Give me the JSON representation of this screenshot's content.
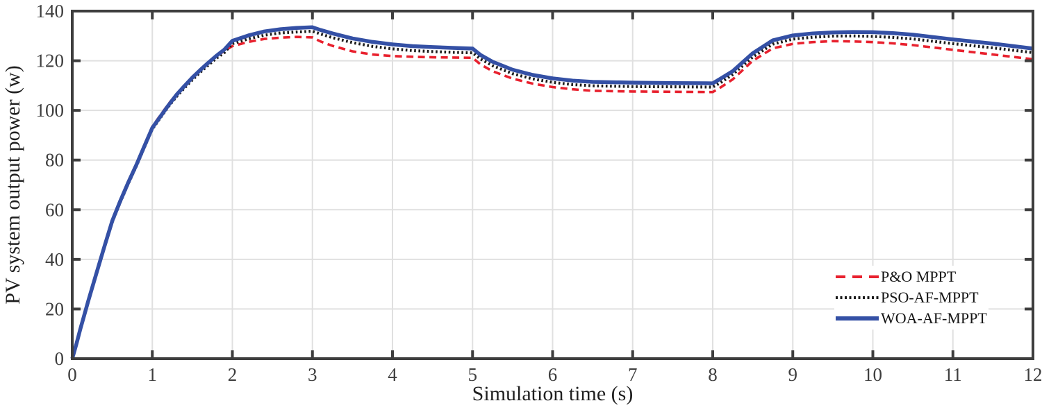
{
  "chart_data": {
    "type": "line",
    "title": "",
    "xlabel": "Simulation time (s)",
    "ylabel": "PV system output power (w)",
    "xlim": [
      0,
      12
    ],
    "ylim": [
      0,
      140
    ],
    "xticks": [
      0,
      1,
      2,
      3,
      4,
      5,
      6,
      7,
      8,
      9,
      10,
      11,
      12
    ],
    "yticks": [
      0,
      20,
      40,
      60,
      80,
      100,
      120,
      140
    ],
    "grid": true,
    "legend_position": "inside-lower-right",
    "x": [
      0,
      0.05,
      0.1,
      0.2,
      0.3,
      0.4,
      0.5,
      0.6,
      0.7,
      0.8,
      0.9,
      1,
      1.1,
      1.2,
      1.3,
      1.4,
      1.5,
      1.6,
      1.7,
      1.8,
      1.9,
      2,
      2.2,
      2.4,
      2.6,
      2.8,
      3,
      3.1,
      3.25,
      3.5,
      3.75,
      4,
      4.25,
      4.5,
      4.75,
      5,
      5.1,
      5.25,
      5.5,
      5.75,
      6,
      6.25,
      6.5,
      7,
      7.5,
      8,
      8.1,
      8.25,
      8.5,
      8.75,
      9,
      9.25,
      9.5,
      9.75,
      10,
      10.25,
      10.5,
      11,
      11.5,
      12
    ],
    "series": [
      {
        "name": "P&O MPPT",
        "color": "#e8212e",
        "line_style": "dashed",
        "values": [
          0,
          6,
          12,
          23.5,
          34.5,
          45.5,
          56,
          64,
          71.5,
          78.5,
          86,
          93.5,
          98,
          102.5,
          106.5,
          110,
          113.5,
          116.5,
          119.3,
          121.8,
          124,
          125.9,
          127.6,
          128.8,
          129.3,
          129.6,
          129.4,
          127.8,
          126,
          123.8,
          122.5,
          121.9,
          121.6,
          121.4,
          121.3,
          121.2,
          118.5,
          115.8,
          112.8,
          110.8,
          109.4,
          108.5,
          107.9,
          107.6,
          107.5,
          107.4,
          109.3,
          112.5,
          120,
          125,
          126.8,
          127.5,
          127.9,
          127.8,
          127.5,
          127,
          126.3,
          124.4,
          122.5,
          120.6
        ]
      },
      {
        "name": "PSO-AF-MPPT",
        "color": "#1b1b1b",
        "line_style": "dotted",
        "values": [
          0,
          5.5,
          11.5,
          23,
          34,
          44.8,
          55,
          63,
          70.5,
          77.5,
          85,
          92.5,
          97,
          101.5,
          105.5,
          109,
          112.3,
          115.4,
          118.3,
          121,
          123.3,
          126.9,
          128.8,
          130.3,
          131.2,
          131.6,
          131.9,
          130.8,
          129.3,
          127.3,
          125.8,
          124.8,
          124.1,
          123.7,
          123.4,
          123.2,
          120.7,
          118,
          114.8,
          112.7,
          111.3,
          110.4,
          109.9,
          109.6,
          109.5,
          109.4,
          111.2,
          114.5,
          121.5,
          126.7,
          128.7,
          129.5,
          129.9,
          130,
          129.8,
          129.4,
          128.8,
          126.9,
          125.2,
          123.3
        ]
      },
      {
        "name": "WOA-AF-MPPT",
        "color": "#3450a5",
        "line_style": "solid",
        "values": [
          0,
          5.7,
          11.8,
          23.2,
          34.2,
          45,
          55.5,
          63.5,
          71,
          78,
          85.5,
          93,
          97.5,
          102,
          106.2,
          109.8,
          113.2,
          116.3,
          119.2,
          122,
          124.5,
          128,
          130.2,
          131.8,
          132.7,
          133.2,
          133.5,
          132.4,
          131,
          129,
          127.6,
          126.6,
          125.9,
          125.5,
          125.2,
          124.9,
          122.3,
          119.6,
          116.4,
          114.3,
          112.9,
          112,
          111.5,
          111.2,
          111,
          110.9,
          112.8,
          115.8,
          123,
          128.2,
          130.2,
          131,
          131.4,
          131.6,
          131.5,
          131.1,
          130.5,
          128.6,
          126.9,
          124.9
        ]
      }
    ]
  },
  "axis_style": {
    "frame_color": "#3e3e3e",
    "grid_color": "#e0e0e0",
    "tick_label_color": "#3e3e3e"
  },
  "legend": {
    "items": [
      {
        "label": "P&O MPPT"
      },
      {
        "label": "PSO-AF-MPPT"
      },
      {
        "label": "WOA-AF-MPPT"
      }
    ]
  }
}
